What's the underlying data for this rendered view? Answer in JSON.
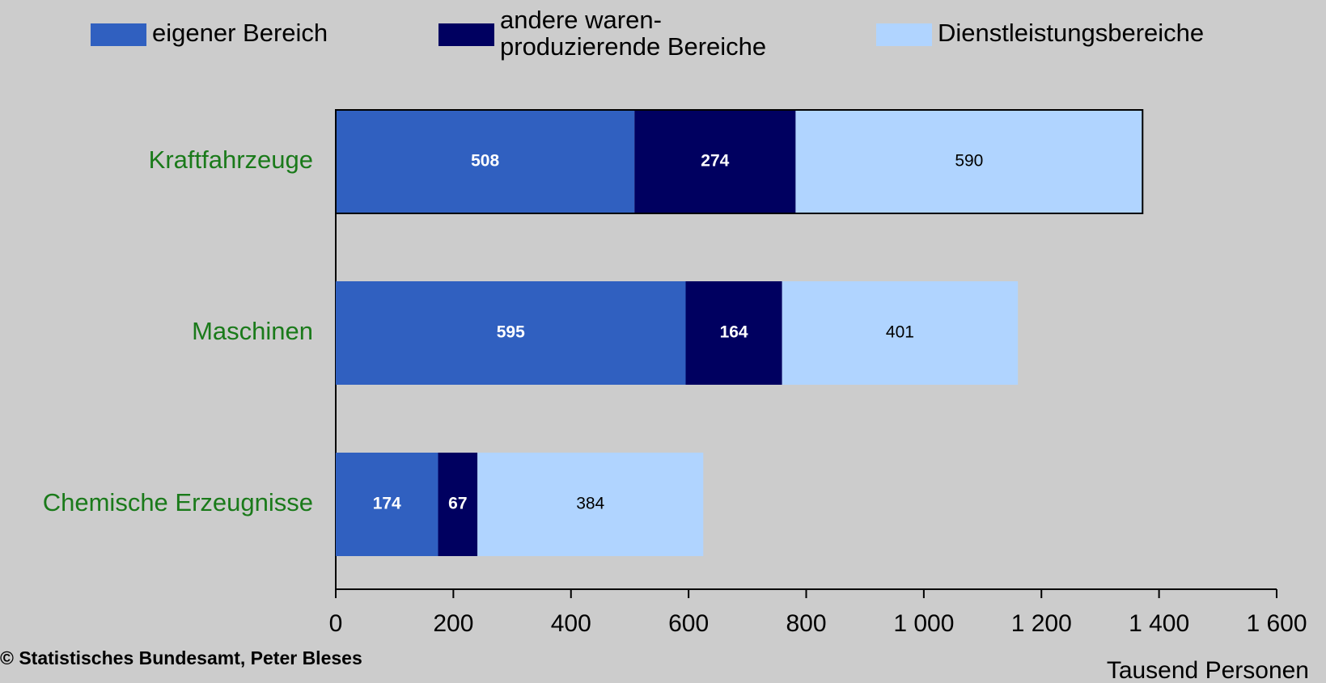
{
  "chart_data": {
    "type": "stacked_barh",
    "categories": [
      "Kraftfahrzeuge",
      "Maschinen",
      "Chemische Erzeugnisse"
    ],
    "series": [
      {
        "name": "eigener Bereich",
        "color": "#3060c0",
        "values": [
          508,
          595,
          174
        ]
      },
      {
        "name": "andere waren-\nproduzierende Bereiche",
        "color": "#000060",
        "values": [
          274,
          164,
          67
        ]
      },
      {
        "name": "Dienstleistungsbereiche",
        "color": "#b0d4ff",
        "values": [
          590,
          401,
          384
        ]
      }
    ],
    "xlim": [
      0,
      1600
    ],
    "xticks": [
      0,
      200,
      400,
      600,
      800,
      {
        "value": 1000,
        "label": "1 000"
      },
      {
        "value": 1200,
        "label": "1 200"
      },
      {
        "value": 1400,
        "label": "1 400"
      },
      {
        "value": 1600,
        "label": "1 600"
      }
    ],
    "xlabel": "Tausend Personen",
    "source": "© Statistisches Bundesamt, Peter Bleses",
    "category_color": "#1a7a1a"
  }
}
